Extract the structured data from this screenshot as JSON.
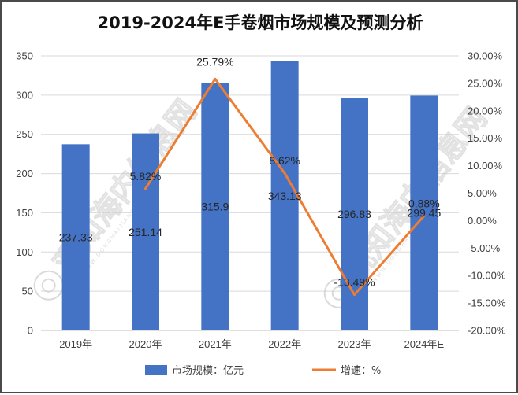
{
  "chart_data": {
    "type": "bar",
    "title": "2019-2024年E手卷烟市场规模及预测分析",
    "categories": [
      "2019年",
      "2020年",
      "2021年",
      "2022年",
      "2023年",
      "2024年E"
    ],
    "series": [
      {
        "name": "市场规模：亿元",
        "type": "bar",
        "axis": "left",
        "color": "#4472C4",
        "values": [
          237.33,
          251.14,
          315.9,
          343.13,
          296.83,
          299.45
        ],
        "labels": [
          "237.33",
          "251.14",
          "315.9",
          "343.13",
          "296.83",
          "299.45"
        ]
      },
      {
        "name": "增速：%",
        "type": "line",
        "axis": "right",
        "color": "#ED7D31",
        "values": [
          null,
          5.82,
          25.79,
          8.62,
          -13.49,
          0.88
        ],
        "labels": [
          "",
          "5.82%",
          "25.79%",
          "8.62%",
          "-13.49%",
          "0.88%"
        ]
      }
    ],
    "y_left": {
      "min": 0,
      "max": 350,
      "ticks": [
        0,
        50,
        100,
        150,
        200,
        250,
        300,
        350
      ],
      "tick_labels": [
        "0",
        "50",
        "100",
        "150",
        "200",
        "250",
        "300",
        "350"
      ]
    },
    "y_right": {
      "min": -20,
      "max": 30,
      "ticks": [
        -20,
        -15,
        -10,
        -5,
        0,
        5,
        10,
        15,
        20,
        25,
        30
      ],
      "tick_labels": [
        "-20.00%",
        "-15.00%",
        "-10.00%",
        "-5.00%",
        "0.00%",
        "5.00%",
        "10.00%",
        "15.00%",
        "20.00%",
        "25.00%",
        "30.00%"
      ]
    },
    "grid": true,
    "legend_position": "bottom"
  },
  "watermark": {
    "text": "观知海内信息网",
    "sub": "WWW.DONGHAIJIANG.COM",
    "icon": "watermark-logo-icon"
  }
}
